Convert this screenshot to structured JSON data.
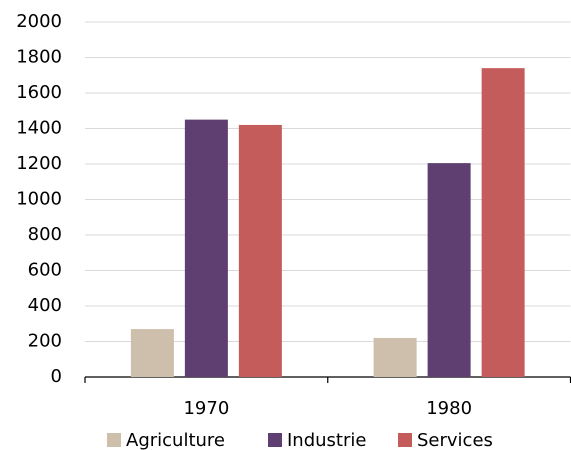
{
  "chart_data": {
    "type": "bar",
    "categories": [
      "1970",
      "1980"
    ],
    "series": [
      {
        "name": "Agriculture",
        "color": "#cebfac",
        "values": [
          270,
          220
        ]
      },
      {
        "name": "Industrie",
        "color": "#5f3f72",
        "values": [
          1450,
          1205
        ]
      },
      {
        "name": "Services",
        "color": "#c45c5c",
        "values": [
          1420,
          1740
        ]
      }
    ],
    "ylim": [
      0,
      2000
    ],
    "yticks": [
      0,
      200,
      400,
      600,
      800,
      1000,
      1200,
      1400,
      1600,
      1800,
      2000
    ],
    "grid": true,
    "legend": "bottom"
  }
}
